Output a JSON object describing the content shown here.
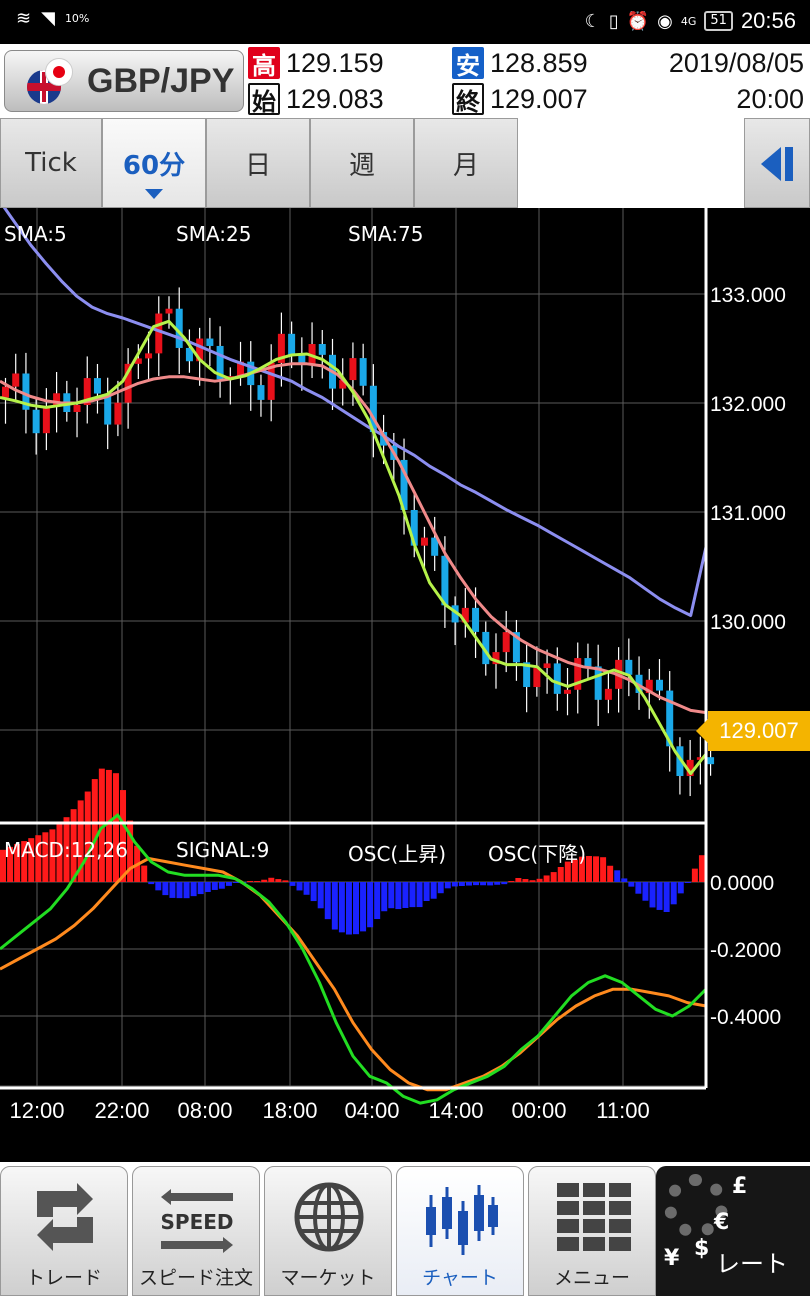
{
  "status_bar": {
    "time": "20:56",
    "battery": "51",
    "signal_pct": "10%",
    "network": "4G"
  },
  "header": {
    "pair": "GBP/JPY",
    "high_label": "高",
    "high": "129.159",
    "low_label": "安",
    "low": "128.859",
    "open_label": "始",
    "open": "129.083",
    "close_label": "終",
    "close": "129.007",
    "date": "2019/08/05",
    "time": "20:00"
  },
  "tabs": [
    "Tick",
    "60分",
    "日",
    "週",
    "月"
  ],
  "active_tab": "60分",
  "legend": {
    "sma5": "SMA:5",
    "sma25": "SMA:25",
    "sma75": "SMA:75",
    "macd": "MACD:12,26",
    "signal": "SIGNAL:9",
    "osc_up": "OSC(上昇)",
    "osc_down": "OSC(下降)"
  },
  "colors": {
    "sma5": "#b6f24a",
    "sma25": "#f08a8a",
    "sma75": "#8c8ef0",
    "macd": "#22dd22",
    "signal": "#ff8a1e",
    "up": "#e8101a",
    "down": "#1aa8e8",
    "osc_up": "#ff1a1a",
    "osc_down": "#1a22ff",
    "badge": "#f4b400"
  },
  "price_axis": [
    "133.000",
    "132.000",
    "131.000",
    "130.000"
  ],
  "current_price": "129.007",
  "macd_axis": [
    "0.0000",
    "-0.2000",
    "-0.4000"
  ],
  "time_axis": [
    "12:00",
    "22:00",
    "08:00",
    "18:00",
    "04:00",
    "14:00",
    "00:00",
    "11:00"
  ],
  "nav": {
    "trade": "トレード",
    "speed_order": "スピード注文",
    "speed_word": "SPEED",
    "market": "マーケット",
    "chart": "チャート",
    "menu": "メニュー",
    "rate": "レート"
  },
  "chart_data": {
    "type": "candlestick",
    "ylim": [
      128.1,
      133.9
    ],
    "series": [
      {
        "name": "SMA:5",
        "values": [
          132.05,
          132.02,
          131.98,
          131.96,
          131.98,
          132.0,
          132.04,
          132.08,
          132.2,
          132.45,
          132.7,
          132.75,
          132.6,
          132.4,
          132.28,
          132.22,
          132.25,
          132.32,
          132.4,
          132.44,
          132.45,
          132.4,
          132.3,
          132.1,
          131.85,
          131.5,
          131.15,
          130.7,
          130.35,
          130.15,
          130.05,
          129.85,
          129.65,
          129.6,
          129.6,
          129.58,
          129.45,
          129.4,
          129.45,
          129.5,
          129.55,
          129.5,
          129.3,
          129.05,
          128.8,
          128.6,
          128.78
        ]
      },
      {
        "name": "SMA:25",
        "values": [
          132.2,
          132.12,
          132.06,
          132.02,
          132.0,
          132.0,
          132.02,
          132.06,
          132.12,
          132.18,
          132.22,
          132.24,
          132.24,
          132.22,
          132.2,
          132.22,
          132.26,
          132.3,
          132.34,
          132.36,
          132.36,
          132.34,
          132.26,
          132.12,
          131.94,
          131.7,
          131.46,
          131.18,
          130.9,
          130.62,
          130.4,
          130.2,
          130.04,
          129.92,
          129.82,
          129.74,
          129.68,
          129.62,
          129.58,
          129.56,
          129.52,
          129.46,
          129.38,
          129.3,
          129.24,
          129.18,
          129.16
        ]
      },
      {
        "name": "SMA:75",
        "values": [
          133.85,
          133.65,
          133.45,
          133.28,
          133.12,
          132.98,
          132.88,
          132.82,
          132.78,
          132.73,
          132.68,
          132.63,
          132.58,
          132.52,
          132.46,
          132.4,
          132.35,
          132.3,
          132.25,
          132.2,
          132.12,
          132.05,
          131.96,
          131.87,
          131.78,
          131.7,
          131.6,
          131.52,
          131.42,
          131.34,
          131.25,
          131.18,
          131.1,
          131.02,
          130.95,
          130.88,
          130.8,
          130.72,
          130.64,
          130.56,
          130.48,
          130.4,
          130.3,
          130.2,
          130.12,
          130.05,
          130.98
        ]
      },
      {
        "name": "MACD:12,26",
        "values": [
          -0.2,
          -0.16,
          -0.12,
          -0.08,
          -0.02,
          0.06,
          0.16,
          0.2,
          0.12,
          0.06,
          0.03,
          0.02,
          0.02,
          0.02,
          0.01,
          -0.02,
          -0.06,
          -0.12,
          -0.2,
          -0.3,
          -0.42,
          -0.52,
          -0.58,
          -0.6,
          -0.64,
          -0.66,
          -0.65,
          -0.62,
          -0.6,
          -0.58,
          -0.55,
          -0.5,
          -0.46,
          -0.4,
          -0.34,
          -0.3,
          -0.28,
          -0.3,
          -0.34,
          -0.38,
          -0.4,
          -0.37,
          -0.32
        ]
      },
      {
        "name": "SIGNAL:9",
        "values": [
          -0.26,
          -0.23,
          -0.2,
          -0.17,
          -0.13,
          -0.08,
          -0.02,
          0.04,
          0.07,
          0.06,
          0.05,
          0.04,
          0.03,
          0.0,
          -0.04,
          -0.1,
          -0.16,
          -0.24,
          -0.32,
          -0.42,
          -0.5,
          -0.56,
          -0.6,
          -0.62,
          -0.62,
          -0.6,
          -0.58,
          -0.55,
          -0.51,
          -0.46,
          -0.41,
          -0.37,
          -0.34,
          -0.32,
          -0.32,
          -0.33,
          -0.34,
          -0.36,
          -0.37
        ]
      }
    ]
  }
}
